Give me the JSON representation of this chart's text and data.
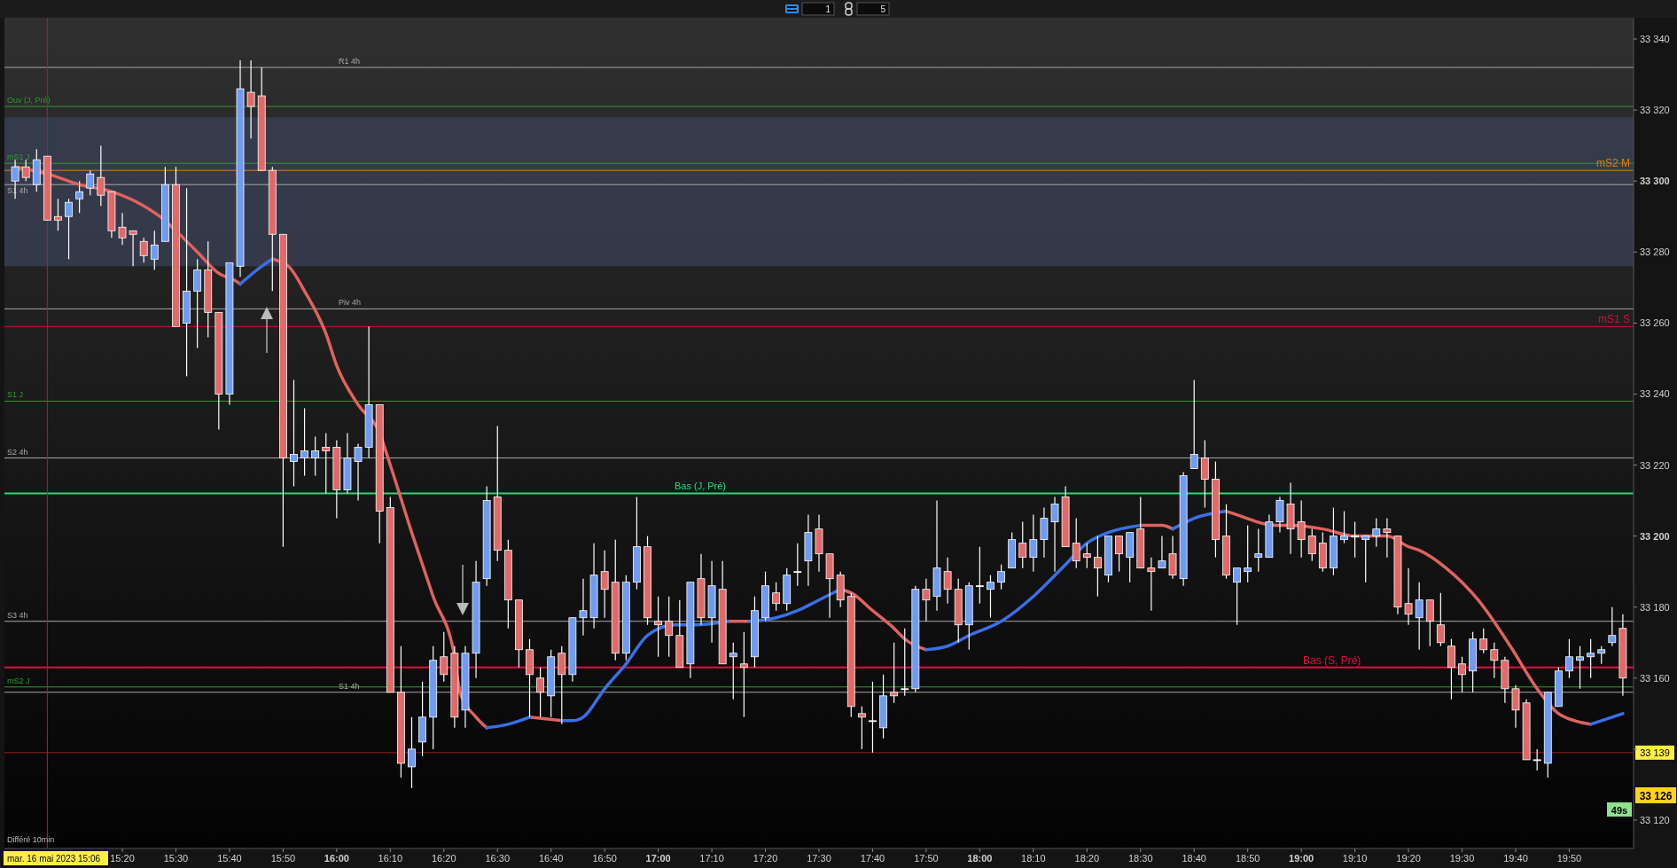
{
  "chart_data": {
    "type": "candlestick",
    "xlim": [
      "2023-05-16T14:58",
      "2023-05-16T20:02"
    ],
    "ylim": [
      33112,
      33346
    ],
    "xticks": [
      {
        "value": "2023-05-16T15:20",
        "label": "15:20"
      },
      {
        "value": "2023-05-16T15:30",
        "label": "15:30"
      },
      {
        "value": "2023-05-16T15:40",
        "label": "15:40"
      },
      {
        "value": "2023-05-16T15:50",
        "label": "15:50"
      },
      {
        "value": "2023-05-16T16:00",
        "label": "16:00"
      },
      {
        "value": "2023-05-16T16:10",
        "label": "16:10"
      },
      {
        "value": "2023-05-16T16:20",
        "label": "16:20"
      },
      {
        "value": "2023-05-16T16:30",
        "label": "16:30"
      },
      {
        "value": "2023-05-16T16:40",
        "label": "16:40"
      },
      {
        "value": "2023-05-16T16:50",
        "label": "16:50"
      },
      {
        "value": "2023-05-16T17:00",
        "label": "17:00"
      },
      {
        "value": "2023-05-16T17:10",
        "label": "17:10"
      },
      {
        "value": "2023-05-16T17:20",
        "label": "17:20"
      },
      {
        "value": "2023-05-16T17:30",
        "label": "17:30"
      },
      {
        "value": "2023-05-16T17:40",
        "label": "17:40"
      },
      {
        "value": "2023-05-16T17:50",
        "label": "17:50"
      },
      {
        "value": "2023-05-16T18:00",
        "label": "18:00"
      },
      {
        "value": "2023-05-16T18:10",
        "label": "18:10"
      },
      {
        "value": "2023-05-16T18:20",
        "label": "18:20"
      },
      {
        "value": "2023-05-16T18:30",
        "label": "18:30"
      },
      {
        "value": "2023-05-16T18:40",
        "label": "18:40"
      },
      {
        "value": "2023-05-16T18:50",
        "label": "18:50"
      },
      {
        "value": "2023-05-16T19:00",
        "label": "19:00"
      },
      {
        "value": "2023-05-16T19:10",
        "label": "19:10"
      },
      {
        "value": "2023-05-16T19:20",
        "label": "19:20"
      },
      {
        "value": "2023-05-16T19:30",
        "label": "19:30"
      },
      {
        "value": "2023-05-16T19:40",
        "label": "19:40"
      },
      {
        "value": "2023-05-16T19:50",
        "label": "19:50"
      }
    ],
    "yticks": [
      {
        "value": 33120,
        "label": "33 120"
      },
      {
        "value": 33140,
        "label": null
      },
      {
        "value": 33160,
        "label": "33 160"
      },
      {
        "value": 33180,
        "label": "33 180"
      },
      {
        "value": 33200,
        "label": "33 200"
      },
      {
        "value": 33220,
        "label": "33 220"
      },
      {
        "value": 33240,
        "label": "33 240"
      },
      {
        "value": 33260,
        "label": "33 260"
      },
      {
        "value": 33280,
        "label": "33 280"
      },
      {
        "value": 33300,
        "label": "33 300"
      },
      {
        "value": 33320,
        "label": "33 320"
      },
      {
        "value": 33340,
        "label": "33 340"
      }
    ],
    "bands": [
      {
        "axis": "y",
        "from": 33276,
        "to": 33318,
        "color": "#3a4358"
      }
    ],
    "ref_lines": [
      {
        "axis": "y",
        "value": 33332,
        "label": "R1 4h",
        "color": "#a8a8a8"
      },
      {
        "axis": "y",
        "value": 33321,
        "label": "Ouv (J, Pré)",
        "color": "#2f9a2f"
      },
      {
        "axis": "y",
        "value": 33305,
        "label": "mS1 J",
        "color": "#2f9a2f"
      },
      {
        "axis": "y",
        "value": 33303,
        "label": "mS2 M",
        "color": "#e07a1f"
      },
      {
        "axis": "y",
        "value": 33299,
        "label": "S1 4h",
        "color": "#a8a8a8"
      },
      {
        "axis": "y",
        "value": 33264,
        "label": "Piv 4h",
        "color": "#a8a8a8"
      },
      {
        "axis": "y",
        "value": 33259,
        "label": "mS1 S",
        "color": "#d0103a"
      },
      {
        "axis": "y",
        "value": 33238,
        "label": "S1 J",
        "color": "#2f9a2f"
      },
      {
        "axis": "y",
        "value": 33222,
        "label": "S2 4h",
        "color": "#a8a8a8"
      },
      {
        "axis": "y",
        "value": 33212,
        "label": "Bas (J, Pré)",
        "color": "#22dd77"
      },
      {
        "axis": "y",
        "value": 33176,
        "label": "S3 4h",
        "color": "#a8a8a8"
      },
      {
        "axis": "y",
        "value": 33163,
        "label": "Bas (S, Pré)",
        "color": "#e0103c"
      },
      {
        "axis": "y",
        "value": 33157.5,
        "label": "mS2 J",
        "color": "#2f9a2f"
      },
      {
        "axis": "y",
        "value": 33156,
        "label": "S1 4h",
        "color": "#a8a8a8"
      },
      {
        "axis": "y",
        "value": 33139,
        "label": "33 139",
        "color": "#a01f1f"
      },
      {
        "axis": "x",
        "value": "2023-05-16T15:06",
        "label": "mar. 16 mai 2023 15:06",
        "color": "#b0202a"
      }
    ],
    "annotations": [
      "Différé 10min",
      "33 126",
      "49s",
      "1",
      "5"
    ],
    "series": [
      {
        "type": "line",
        "color": "#e0625f",
        "x": [
          "2023-05-16T15:00",
          "2023-05-16T15:06",
          "2023-05-16T15:12",
          "2023-05-16T15:18",
          "2023-05-16T15:24",
          "2023-05-16T15:27",
          "2023-05-16T15:30",
          "2023-05-16T15:34",
          "2023-05-16T15:38",
          "2023-05-16T15:41",
          "2023-05-16T15:42",
          "2023-05-16T15:45",
          "2023-05-16T15:48",
          "2023-05-16T15:51",
          "2023-05-16T15:54",
          "2023-05-16T15:58",
          "2023-05-16T16:00",
          "2023-05-16T16:04",
          "2023-05-16T16:08",
          "2023-05-16T16:10",
          "2023-05-16T16:14",
          "2023-05-16T16:18",
          "2023-05-16T16:22",
          "2023-05-16T16:23",
          "2023-05-16T16:26",
          "2023-05-16T16:28",
          "2023-05-16T16:32",
          "2023-05-16T16:36",
          "2023-05-16T16:42",
          "2023-05-16T16:50",
          "2023-05-16T17:13",
          "2023-05-16T17:14",
          "2023-05-16T17:17",
          "2023-05-16T17:26",
          "2023-05-16T17:34",
          "2023-05-16T17:36",
          "2023-05-16T17:40",
          "2023-05-16T17:44",
          "2023-05-16T17:46",
          "2023-05-16T17:50",
          "2023-05-16T18:10",
          "2023-05-16T18:30",
          "2023-05-16T18:34",
          "2023-05-16T18:36",
          "2023-05-16T18:40",
          "2023-05-16T18:46",
          "2023-05-16T18:48",
          "2023-05-16T18:55",
          "2023-05-16T18:58",
          "2023-05-16T19:04",
          "2023-05-16T19:10",
          "2023-05-16T19:16",
          "2023-05-16T19:20",
          "2023-05-16T19:22",
          "2023-05-16T19:27",
          "2023-05-16T19:33",
          "2023-05-16T19:39",
          "2023-05-16T19:44",
          "2023-05-16T19:48",
          "2023-05-16T19:51",
          "2023-05-16T19:54"
        ],
        "values": [
          33304,
          33302,
          33299,
          33297,
          33293,
          33290,
          33286,
          33280,
          33274,
          33272,
          33271,
          null,
          33278,
          33276,
          33269,
          33257,
          33248,
          33237,
          33229,
          33220,
          33201,
          33183,
          33166,
          33156,
          33149,
          33146,
          null,
          33149,
          33148,
          null,
          33176,
          33176,
          33176,
          null,
          33185,
          33184,
          33179,
          33174,
          33171,
          33168,
          null,
          33203,
          33203,
          33202,
          null,
          33207,
          33206,
          33203,
          33203,
          33202,
          33200,
          33200,
          33197,
          33196,
          33191,
          33182,
          33169,
          33157,
          33150,
          33148,
          33147
        ]
      },
      {
        "type": "line",
        "color": "#3b6fe6",
        "x": [
          "2023-05-16T15:42",
          "2023-05-16T15:46",
          "2023-05-16T15:48",
          "2023-05-16T16:00",
          "2023-05-16T16:28",
          "2023-05-16T16:32",
          "2023-05-16T16:36",
          "2023-05-16T16:39",
          "2023-05-16T16:42",
          "2023-05-16T16:44",
          "2023-05-16T16:46",
          "2023-05-16T16:50",
          "2023-05-16T16:54",
          "2023-05-16T16:58",
          "2023-05-16T17:03",
          "2023-05-16T17:07",
          "2023-05-16T17:13",
          "2023-05-16T17:15",
          "2023-05-16T17:17",
          "2023-05-16T17:22",
          "2023-05-16T17:26",
          "2023-05-16T17:30",
          "2023-05-16T17:34",
          "2023-05-16T17:42",
          "2023-05-16T17:50",
          "2023-05-16T17:54",
          "2023-05-16T17:58",
          "2023-05-16T18:04",
          "2023-05-16T18:10",
          "2023-05-16T18:16",
          "2023-05-16T18:20",
          "2023-05-16T18:24",
          "2023-05-16T18:30",
          "2023-05-16T18:33",
          "2023-05-16T18:36",
          "2023-05-16T18:40",
          "2023-05-16T18:46",
          "2023-05-16T19:00",
          "2023-05-16T19:54",
          "2023-05-16T19:56",
          "2023-05-16T20:00"
        ],
        "values": [
          33271,
          33276,
          33278,
          null,
          33146,
          33147,
          33149,
          null,
          33148,
          33148,
          33149,
          33157,
          33164,
          33172,
          33175,
          33175,
          33176,
          null,
          33176,
          33177,
          33179,
          33182,
          33185,
          null,
          33168,
          33169,
          33172,
          33176,
          33183,
          33192,
          33198,
          33201,
          33203,
          null,
          33202,
          33205,
          33207,
          null,
          33147,
          33148,
          33150
        ]
      },
      {
        "type": "candlestick",
        "color": "#6f9cf0",
        "x": [
          "2023-05-16T15:00",
          "2023-05-16T15:04",
          "2023-05-16T15:10",
          "2023-05-16T15:12",
          "2023-05-16T15:14",
          "2023-05-16T15:26",
          "2023-05-16T15:28",
          "2023-05-16T15:32",
          "2023-05-16T15:34",
          "2023-05-16T15:40",
          "2023-05-16T15:42",
          "2023-05-16T15:52",
          "2023-05-16T15:54",
          "2023-05-16T15:56",
          "2023-05-16T16:02",
          "2023-05-16T16:04",
          "2023-05-16T16:06",
          "2023-05-16T16:14",
          "2023-05-16T16:16",
          "2023-05-16T16:18",
          "2023-05-16T16:24",
          "2023-05-16T16:26",
          "2023-05-16T16:28",
          "2023-05-16T16:40",
          "2023-05-16T16:44",
          "2023-05-16T16:46",
          "2023-05-16T16:48",
          "2023-05-16T16:54",
          "2023-05-16T16:56",
          "2023-05-16T17:06",
          "2023-05-16T17:10",
          "2023-05-16T17:14",
          "2023-05-16T17:18",
          "2023-05-16T17:20",
          "2023-05-16T17:24",
          "2023-05-16T17:28",
          "2023-05-16T17:42",
          "2023-05-16T17:48",
          "2023-05-16T17:52",
          "2023-05-16T17:58",
          "2023-05-16T18:02",
          "2023-05-16T18:04",
          "2023-05-16T18:06",
          "2023-05-16T18:10",
          "2023-05-16T18:12",
          "2023-05-16T18:14",
          "2023-05-16T18:24",
          "2023-05-16T18:28",
          "2023-05-16T18:34",
          "2023-05-16T18:38",
          "2023-05-16T18:40",
          "2023-05-16T18:48",
          "2023-05-16T18:50",
          "2023-05-16T18:52",
          "2023-05-16T18:54",
          "2023-05-16T18:56",
          "2023-05-16T19:06",
          "2023-05-16T19:08",
          "2023-05-16T19:12",
          "2023-05-16T19:14",
          "2023-05-16T19:22",
          "2023-05-16T19:32",
          "2023-05-16T19:46",
          "2023-05-16T19:48",
          "2023-05-16T19:50",
          "2023-05-16T19:52",
          "2023-05-16T19:54",
          "2023-05-16T19:56",
          "2023-05-16T19:58"
        ],
        "ohlc": [
          [
            33300,
            33306,
            33295,
            33304
          ],
          [
            33299,
            33309,
            33297,
            33306
          ],
          [
            33290,
            33295,
            33278,
            33294
          ],
          [
            33295,
            33300,
            33291,
            33297
          ],
          [
            33298,
            33303,
            33296,
            33302
          ],
          [
            33278,
            33286,
            33275,
            33282
          ],
          [
            33283,
            33304,
            33283,
            33299
          ],
          [
            33260,
            33298,
            33245,
            33269
          ],
          [
            33269,
            33278,
            33253,
            33275
          ],
          [
            33240,
            33277,
            33237,
            33277
          ],
          [
            33276,
            33334,
            33273,
            33326
          ],
          [
            33221,
            33244,
            33214,
            33223
          ],
          [
            33222,
            33236,
            33217,
            33224
          ],
          [
            33222,
            33228,
            33217,
            33224
          ],
          [
            33213,
            33229,
            33212,
            33222
          ],
          [
            33221,
            33226,
            33210,
            33225
          ],
          [
            33225,
            33259,
            33222,
            33237
          ],
          [
            33135,
            33149,
            33129,
            33140
          ],
          [
            33142,
            33159,
            33138,
            33149
          ],
          [
            33149,
            33169,
            33140,
            33165
          ],
          [
            33151,
            33169,
            33146,
            33167
          ],
          [
            33167,
            33193,
            33160,
            33187
          ],
          [
            33188,
            33214,
            33186,
            33210
          ],
          [
            33155,
            33168,
            33149,
            33166
          ],
          [
            33161,
            33177,
            33159,
            33177
          ],
          [
            33177,
            33188,
            33172,
            33179
          ],
          [
            33177,
            33198,
            33174,
            33189
          ],
          [
            33167,
            33189,
            33165,
            33187
          ],
          [
            33187,
            33211,
            33185,
            33197
          ],
          [
            33164,
            33187,
            33160,
            33187
          ],
          [
            33177,
            33193,
            33170,
            33186
          ],
          [
            33166,
            33170,
            33154,
            33167
          ],
          [
            33166,
            33183,
            33163,
            33179
          ],
          [
            33177,
            33190,
            33176,
            33186
          ],
          [
            33181,
            33191,
            33179,
            33189
          ],
          [
            33193,
            33206,
            33186,
            33201
          ],
          [
            33146,
            33161,
            33143,
            33155
          ],
          [
            33157,
            33186,
            33156,
            33185
          ],
          [
            33183,
            33210,
            33179,
            33191
          ],
          [
            33175,
            33187,
            33168,
            33186
          ],
          [
            33185,
            33189,
            33177,
            33187
          ],
          [
            33187,
            33192,
            33185,
            33190
          ],
          [
            33191,
            33201,
            33191,
            33199
          ],
          [
            33194,
            33206,
            33190,
            33199
          ],
          [
            33199,
            33208,
            33194,
            33205
          ],
          [
            33204,
            33211,
            33190,
            33209
          ],
          [
            33189,
            33200,
            33187,
            33200
          ],
          [
            33194,
            33201,
            33187,
            33201
          ],
          [
            33191,
            33200,
            33191,
            33193
          ],
          [
            33188,
            33218,
            33186,
            33217
          ],
          [
            33219,
            33244,
            33219,
            33223
          ],
          [
            33187,
            33191,
            33175,
            33191
          ],
          [
            33190,
            33203,
            33187,
            33191
          ],
          [
            33194,
            33202,
            33190,
            33195
          ],
          [
            33194,
            33206,
            33194,
            33204
          ],
          [
            33204,
            33211,
            33201,
            33210
          ],
          [
            33191,
            33208,
            33189,
            33200
          ],
          [
            33199,
            33207,
            33198,
            33200
          ],
          [
            33199,
            33200,
            33187,
            33200
          ],
          [
            33200,
            33205,
            33197,
            33202
          ],
          [
            33177,
            33187,
            33168,
            33182
          ],
          [
            33162,
            33173,
            33156,
            33171
          ],
          [
            33136,
            33156,
            33132,
            33156
          ],
          [
            33152,
            33163,
            33152,
            33162
          ],
          [
            33162,
            33171,
            33160,
            33166
          ],
          [
            33165,
            33169,
            33157,
            33166
          ],
          [
            33166,
            33171,
            33160,
            33167
          ],
          [
            33167,
            33169,
            33164,
            33168
          ],
          [
            33170,
            33180,
            33169,
            33172
          ]
        ]
      },
      {
        "type": "candlestick",
        "color": "#e06a6a",
        "x": [
          "2023-05-16T15:02",
          "2023-05-16T15:06",
          "2023-05-16T15:08",
          "2023-05-16T15:16",
          "2023-05-16T15:18",
          "2023-05-16T15:20",
          "2023-05-16T15:22",
          "2023-05-16T15:24",
          "2023-05-16T15:30",
          "2023-05-16T15:36",
          "2023-05-16T15:38",
          "2023-05-16T15:44",
          "2023-05-16T15:46",
          "2023-05-16T15:48",
          "2023-05-16T15:50",
          "2023-05-16T15:58",
          "2023-05-16T16:00",
          "2023-05-16T16:08",
          "2023-05-16T16:10",
          "2023-05-16T16:12",
          "2023-05-16T16:20",
          "2023-05-16T16:22",
          "2023-05-16T16:30",
          "2023-05-16T16:32",
          "2023-05-16T16:34",
          "2023-05-16T16:36",
          "2023-05-16T16:38",
          "2023-05-16T16:42",
          "2023-05-16T16:50",
          "2023-05-16T16:52",
          "2023-05-16T16:58",
          "2023-05-16T17:00",
          "2023-05-16T17:02",
          "2023-05-16T17:04",
          "2023-05-16T17:08",
          "2023-05-16T17:12",
          "2023-05-16T17:16",
          "2023-05-16T17:22",
          "2023-05-16T17:30",
          "2023-05-16T17:32",
          "2023-05-16T17:34",
          "2023-05-16T17:36",
          "2023-05-16T17:38",
          "2023-05-16T17:44",
          "2023-05-16T17:50",
          "2023-05-16T17:54",
          "2023-05-16T17:56",
          "2023-05-16T18:08",
          "2023-05-16T18:16",
          "2023-05-16T18:18",
          "2023-05-16T18:20",
          "2023-05-16T18:22",
          "2023-05-16T18:26",
          "2023-05-16T18:30",
          "2023-05-16T18:32",
          "2023-05-16T18:36",
          "2023-05-16T18:42",
          "2023-05-16T18:44",
          "2023-05-16T18:46",
          "2023-05-16T18:58",
          "2023-05-16T19:00",
          "2023-05-16T19:02",
          "2023-05-16T19:04",
          "2023-05-16T19:16",
          "2023-05-16T19:18",
          "2023-05-16T19:20",
          "2023-05-16T19:24",
          "2023-05-16T19:26",
          "2023-05-16T19:28",
          "2023-05-16T19:30",
          "2023-05-16T19:34",
          "2023-05-16T19:36",
          "2023-05-16T19:38",
          "2023-05-16T19:40",
          "2023-05-16T19:42",
          "2023-05-16T20:00"
        ],
        "ohlc": [
          [
            33304,
            33306,
            33300,
            33301
          ],
          [
            33307,
            33307,
            33289,
            33289
          ],
          [
            33290,
            33295,
            33286,
            33289
          ],
          [
            33301,
            33310,
            33293,
            33296
          ],
          [
            33297,
            33297,
            33284,
            33286
          ],
          [
            33287,
            33291,
            33282,
            33284
          ],
          [
            33286,
            33286,
            33276,
            33285
          ],
          [
            33283,
            33284,
            33277,
            33279
          ],
          [
            33299,
            33304,
            33259,
            33259
          ],
          [
            33275,
            33283,
            33256,
            33263
          ],
          [
            33263,
            33263,
            33230,
            33240
          ],
          [
            33325,
            33334,
            33312,
            33321
          ],
          [
            33324,
            33332,
            33303,
            33303
          ],
          [
            33303,
            33304,
            33269,
            33285
          ],
          [
            33285,
            33285,
            33197,
            33222
          ],
          [
            33225,
            33229,
            33212,
            33224
          ],
          [
            33225,
            33227,
            33205,
            33213
          ],
          [
            33237,
            33237,
            33198,
            33207
          ],
          [
            33208,
            33211,
            33156,
            33156
          ],
          [
            33156,
            33169,
            33132,
            33136
          ],
          [
            33166,
            33173,
            33159,
            33161
          ],
          [
            33167,
            33169,
            33146,
            33149
          ],
          [
            33211,
            33231,
            33193,
            33196
          ],
          [
            33196,
            33199,
            33174,
            33182
          ],
          [
            33182,
            33182,
            33163,
            33168
          ],
          [
            33168,
            33171,
            33149,
            33161
          ],
          [
            33160,
            33163,
            33149,
            33156
          ],
          [
            33167,
            33169,
            33147,
            33161
          ],
          [
            33190,
            33196,
            33177,
            33185
          ],
          [
            33187,
            33199,
            33165,
            33167
          ],
          [
            33197,
            33200,
            33175,
            33177
          ],
          [
            33176,
            33183,
            33166,
            33175
          ],
          [
            33176,
            33183,
            33166,
            33172
          ],
          [
            33172,
            33182,
            33163,
            33163
          ],
          [
            33188,
            33195,
            33175,
            33177
          ],
          [
            33185,
            33193,
            33164,
            33164
          ],
          [
            33164,
            33173,
            33149,
            33163
          ],
          [
            33184,
            33187,
            33179,
            33181
          ],
          [
            33202,
            33206,
            33190,
            33195
          ],
          [
            33195,
            33195,
            33177,
            33188
          ],
          [
            33189,
            33190,
            33180,
            33182
          ],
          [
            33183,
            33184,
            33149,
            33152
          ],
          [
            33150,
            33152,
            33140,
            33149
          ],
          [
            33156,
            33170,
            33153,
            33155
          ],
          [
            33185,
            33188,
            33176,
            33182
          ],
          [
            33190,
            33194,
            33181,
            33185
          ],
          [
            33185,
            33188,
            33170,
            33175
          ],
          [
            33198,
            33204,
            33191,
            33194
          ],
          [
            33211,
            33214,
            33197,
            33197
          ],
          [
            33198,
            33205,
            33191,
            33193
          ],
          [
            33195,
            33198,
            33191,
            33194
          ],
          [
            33194,
            33200,
            33183,
            33191
          ],
          [
            33200,
            33200,
            33190,
            33195
          ],
          [
            33202,
            33211,
            33191,
            33191
          ],
          [
            33191,
            33194,
            33179,
            33190
          ],
          [
            33195,
            33200,
            33188,
            33189
          ],
          [
            33222,
            33227,
            33208,
            33216
          ],
          [
            33216,
            33221,
            33194,
            33199
          ],
          [
            33200,
            33209,
            33188,
            33189
          ],
          [
            33209,
            33215,
            33195,
            33202
          ],
          [
            33204,
            33210,
            33194,
            33199
          ],
          [
            33200,
            33202,
            33193,
            33195
          ],
          [
            33198,
            33201,
            33190,
            33191
          ],
          [
            33202,
            33205,
            33194,
            33201
          ],
          [
            33200,
            33200,
            33178,
            33180
          ],
          [
            33181,
            33191,
            33175,
            33178
          ],
          [
            33182,
            33182,
            33169,
            33176
          ],
          [
            33175,
            33184,
            33169,
            33170
          ],
          [
            33169,
            33171,
            33154,
            33163
          ],
          [
            33164,
            33166,
            33156,
            33161
          ],
          [
            33171,
            33174,
            33167,
            33168
          ],
          [
            33168,
            33170,
            33160,
            33165
          ],
          [
            33165,
            33166,
            33153,
            33157
          ],
          [
            33157,
            33158,
            33146,
            33151
          ],
          [
            33153,
            33154,
            33137,
            33137
          ],
          [
            33174,
            33178,
            33155,
            33160
          ]
        ]
      },
      {
        "type": "candlestick",
        "color": "#ffffff",
        "x": [
          "2023-05-16T17:26",
          "2023-05-16T17:40",
          "2023-05-16T17:46",
          "2023-05-16T18:00",
          "2023-05-16T19:10",
          "2023-05-16T19:44"
        ],
        "ohlc": [
          [
            33190,
            33198,
            33186,
            33190
          ],
          [
            33148,
            33159,
            33139,
            33148
          ],
          [
            33157,
            33174,
            33155,
            33157
          ],
          [
            33186,
            33197,
            33181,
            33186
          ],
          [
            33200,
            33204,
            33194,
            33200
          ],
          [
            33137,
            33140,
            33134,
            33137
          ]
        ]
      }
    ]
  }
}
